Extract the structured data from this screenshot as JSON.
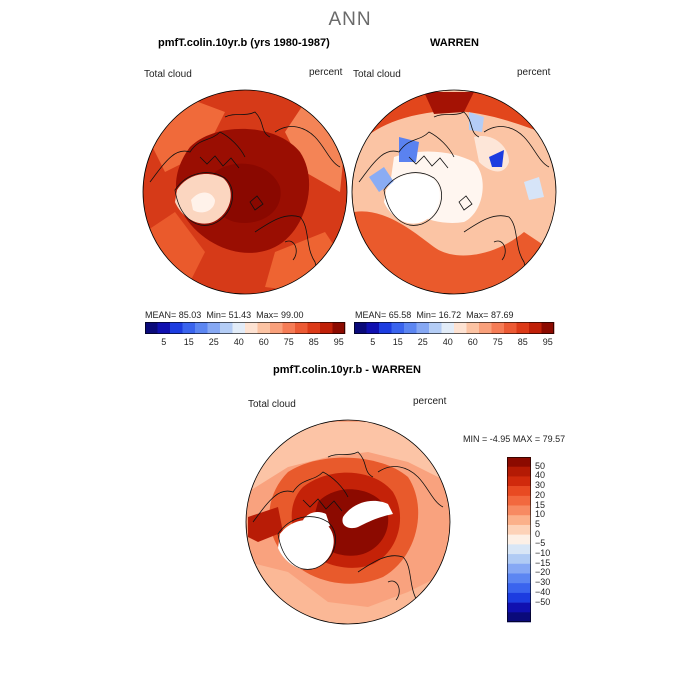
{
  "header": {
    "title": "ANN"
  },
  "panels": [
    {
      "title": "pmfT.colin.10yr.b (yrs 1980-1987)",
      "variable": "Total cloud",
      "units": "percent",
      "stats": {
        "mean_label": "MEAN=",
        "mean": "85.03",
        "min_label": "Min=",
        "min": "51.43",
        "max_label": "Max=",
        "max": "99.00"
      }
    },
    {
      "title": "WARREN",
      "variable": "Total cloud",
      "units": "percent",
      "stats": {
        "mean_label": "MEAN=",
        "mean": "65.58",
        "min_label": "Min=",
        "min": "16.72",
        "max_label": "Max=",
        "max": "87.69"
      }
    },
    {
      "title": "pmfT.colin.10yr.b - WARREN",
      "variable": "Total cloud",
      "units": "percent",
      "stats": {
        "min_label": "MIN =",
        "min": "-4.95",
        "max_label": "MAX =",
        "max": "79.57"
      }
    }
  ],
  "chart_data": [
    {
      "type": "heatmap",
      "projection": "north-polar-stereographic",
      "title": "pmfT.colin.10yr.b (yrs 1980-1987)",
      "variable": "Total cloud",
      "units": "percent",
      "mean": 85.03,
      "min": 51.43,
      "max": 99.0,
      "colorbar": {
        "levels": [
          5,
          10,
          15,
          20,
          25,
          30,
          40,
          50,
          60,
          70,
          75,
          80,
          85,
          90,
          95
        ],
        "tick_labels": [
          "5",
          "15",
          "25",
          "40",
          "60",
          "75",
          "85",
          "95"
        ],
        "colors": [
          "#0a0a7a",
          "#1010b0",
          "#1c3ce0",
          "#3a64ee",
          "#5c86f2",
          "#86a8f4",
          "#b4cdf6",
          "#e2ecf8",
          "#fde2d2",
          "#fcc3a3",
          "#f9a07b",
          "#f57c56",
          "#ec5a34",
          "#dc3a18",
          "#c02008",
          "#8c0a00"
        ]
      }
    },
    {
      "type": "heatmap",
      "projection": "north-polar-stereographic",
      "title": "WARREN",
      "variable": "Total cloud",
      "units": "percent",
      "mean": 65.58,
      "min": 16.72,
      "max": 87.69,
      "colorbar": {
        "levels": [
          5,
          10,
          15,
          20,
          25,
          30,
          40,
          50,
          60,
          70,
          75,
          80,
          85,
          90,
          95
        ],
        "tick_labels": [
          "5",
          "15",
          "25",
          "40",
          "60",
          "75",
          "85",
          "95"
        ],
        "colors": [
          "#0a0a7a",
          "#1010b0",
          "#1c3ce0",
          "#3a64ee",
          "#5c86f2",
          "#86a8f4",
          "#b4cdf6",
          "#e2ecf8",
          "#fde2d2",
          "#fcc3a3",
          "#f9a07b",
          "#f57c56",
          "#ec5a34",
          "#dc3a18",
          "#c02008",
          "#8c0a00"
        ]
      }
    },
    {
      "type": "heatmap",
      "projection": "north-polar-stereographic",
      "title": "pmfT.colin.10yr.b - WARREN",
      "variable": "Total cloud",
      "units": "percent",
      "min": -4.95,
      "max": 79.57,
      "colorbar": {
        "orientation": "vertical",
        "tick_labels": [
          "50",
          "40",
          "30",
          "20",
          "15",
          "10",
          "5",
          "0",
          "−5",
          "−10",
          "−15",
          "−20",
          "−30",
          "−40",
          "−50"
        ],
        "colors": [
          "#8c0a00",
          "#b41a04",
          "#d02a0c",
          "#e84a22",
          "#f2683e",
          "#f78a62",
          "#fbb08a",
          "#fdd2b8",
          "#fdf0e6",
          "#d8e6f6",
          "#b0cbf4",
          "#86a8f4",
          "#5c86f2",
          "#3a64ee",
          "#1c3ce0",
          "#1010b0",
          "#0a0a7a"
        ]
      }
    }
  ]
}
